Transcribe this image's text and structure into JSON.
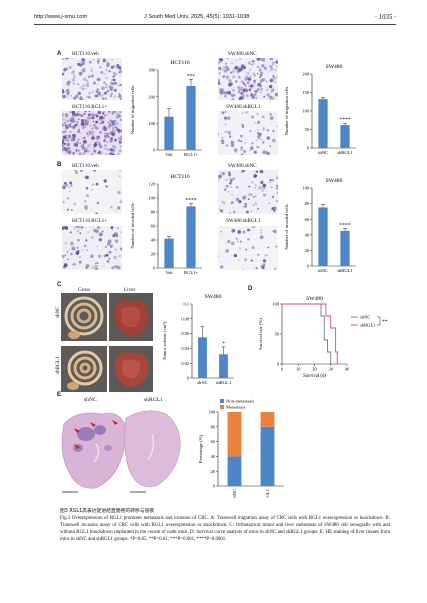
{
  "header": {
    "url": "http://www.j-smu.com",
    "journal": "J South Med Univ, 2025, 45(5): 1031-1038",
    "page": "· 1035 ·"
  },
  "panels": {
    "A": {
      "label": "A",
      "img_top": "HCT116.veh",
      "img_bottom": "HCT116.RGL1+",
      "img_top_right": "SW480.shNC",
      "img_bottom_right": "SW480.shRGL1",
      "chart_left_title": "HCT116",
      "chart_right_title": "SW480",
      "ylabel": "Number of migration cells"
    },
    "B": {
      "label": "B",
      "img_top": "HCT116.veh",
      "img_bottom": "HCT116.RGL1+",
      "img_top_right": "SW480.shNC",
      "img_bottom_right": "SW480.shRGL1",
      "chart_left_title": "HCT116",
      "chart_right_title": "SW480",
      "ylabel": "Number of invaded cells"
    },
    "C": {
      "label": "C",
      "col1": "Gross",
      "col2": "Liver",
      "row1": "shNC",
      "row2": "shRGL1",
      "chart_title": "SW480",
      "ylabel": "Tumor volume (cm³)"
    },
    "D": {
      "label": "D",
      "chart_title": "SW480",
      "ylabel": "Survival rate (%)",
      "xlabel": "Survival (d)",
      "legend": [
        "shNC",
        "shRGL1"
      ],
      "sig": "**"
    },
    "E": {
      "label": "E",
      "img_left": "shNC",
      "img_right": "shRGL1",
      "legend": [
        "Non-metastasis",
        "Metastasis"
      ],
      "ylabel": "Percentage (%)"
    }
  },
  "caption": {
    "zh": "图3  RGL1高表达促进结直肠癌的转移与侵袭",
    "en": "Fig.3 Overexpression of RGL1 promotes metastasis and invasion of CRC. A: Transwell migration assay of CRC cells with RGL1 overexpression or knockdown. B: Transwell invasion assay of CRC cells with RGL1 overexpression or knockdown. C: Orthotopical tumor and liver metastasis of SW480 cell xenografts with and without RGL1 knockdown implanted in the cecum of nude mice. D: Survival curve analysis of mice in shNC and shRGL1 groups. E: HE staining of liver tissues from mice in shNC and shRGL1 groups. *P<0.05, **P<0.01, ***P<0.001, ****P<0.0001."
  },
  "colors": {
    "bar": "#4c86c6",
    "metastasis": "#e8823a",
    "nonmetastasis": "#4c86c6",
    "shNC_curve": "#777777",
    "shRGL1_curve": "#d64a83"
  },
  "chart_data": [
    {
      "id": "A-HCT116",
      "type": "bar",
      "title": "HCT116",
      "ylabel": "Number of migration cells",
      "categories": [
        "Veh",
        "RGL1+"
      ],
      "values": [
        125,
        240
      ],
      "errors": [
        30,
        25
      ],
      "ylim": [
        0,
        300
      ],
      "yticks": [
        0,
        100,
        200,
        300
      ],
      "sig": "***"
    },
    {
      "id": "A-SW480",
      "type": "bar",
      "title": "SW480",
      "ylabel": "Number of migration cells",
      "categories": [
        "shNC",
        "shRGL1"
      ],
      "values": [
        132,
        62
      ],
      "errors": [
        5,
        5
      ],
      "ylim": [
        0,
        200
      ],
      "yticks": [
        0,
        50,
        100,
        150,
        200
      ],
      "sig": "****"
    },
    {
      "id": "B-HCT116",
      "type": "bar",
      "title": "HCT116",
      "ylabel": "Number of invaded cells",
      "categories": [
        "Veh",
        "RGL1+"
      ],
      "values": [
        42,
        88
      ],
      "errors": [
        3,
        4
      ],
      "ylim": [
        0,
        120
      ],
      "yticks": [
        0,
        20,
        40,
        60,
        80,
        100,
        120
      ],
      "sig": "****"
    },
    {
      "id": "B-SW480",
      "type": "bar",
      "title": "SW480",
      "ylabel": "Number of invaded cells",
      "categories": [
        "shNC",
        "shRGL1"
      ],
      "values": [
        75,
        45
      ],
      "errors": [
        4,
        3
      ],
      "ylim": [
        0,
        100
      ],
      "yticks": [
        0,
        20,
        40,
        60,
        80,
        100
      ],
      "sig": "****"
    },
    {
      "id": "C-volume",
      "type": "bar",
      "title": "SW480",
      "ylabel": "Tumor volume (cm³)",
      "categories": [
        "shNC",
        "shRGL1"
      ],
      "values": [
        0.055,
        0.032
      ],
      "errors": [
        0.015,
        0.01
      ],
      "ylim": [
        0,
        0.1
      ],
      "yticks": [
        0,
        0.02,
        0.04,
        0.06,
        0.08,
        0.1
      ],
      "sig": "*"
    },
    {
      "id": "D-survival",
      "type": "line",
      "title": "SW480",
      "xlabel": "Survival (d)",
      "ylabel": "Survival rate (%)",
      "xlim": [
        0,
        40
      ],
      "ylim": [
        0,
        100
      ],
      "xticks": [
        0,
        10,
        20,
        30,
        40
      ],
      "yticks": [
        0,
        50,
        100
      ],
      "series": [
        {
          "name": "shNC",
          "x": [
            0,
            24,
            24,
            26,
            26,
            28,
            28,
            30,
            30
          ],
          "y": [
            100,
            100,
            80,
            80,
            40,
            40,
            20,
            20,
            0
          ]
        },
        {
          "name": "shRGL1",
          "x": [
            0,
            27,
            27,
            30,
            30,
            33,
            33,
            34,
            34
          ],
          "y": [
            100,
            100,
            80,
            80,
            60,
            60,
            20,
            20,
            0
          ]
        }
      ]
    },
    {
      "id": "E-percentage",
      "type": "bar",
      "ylabel": "Percentage (%)",
      "categories": [
        "shNC",
        "shRGL1"
      ],
      "ylim": [
        0,
        100
      ],
      "yticks": [
        0,
        20,
        40,
        60,
        80,
        100
      ],
      "series": [
        {
          "name": "Non-metastasis",
          "values": [
            40,
            80
          ]
        },
        {
          "name": "Metastasis",
          "values": [
            60,
            20
          ]
        }
      ]
    }
  ]
}
